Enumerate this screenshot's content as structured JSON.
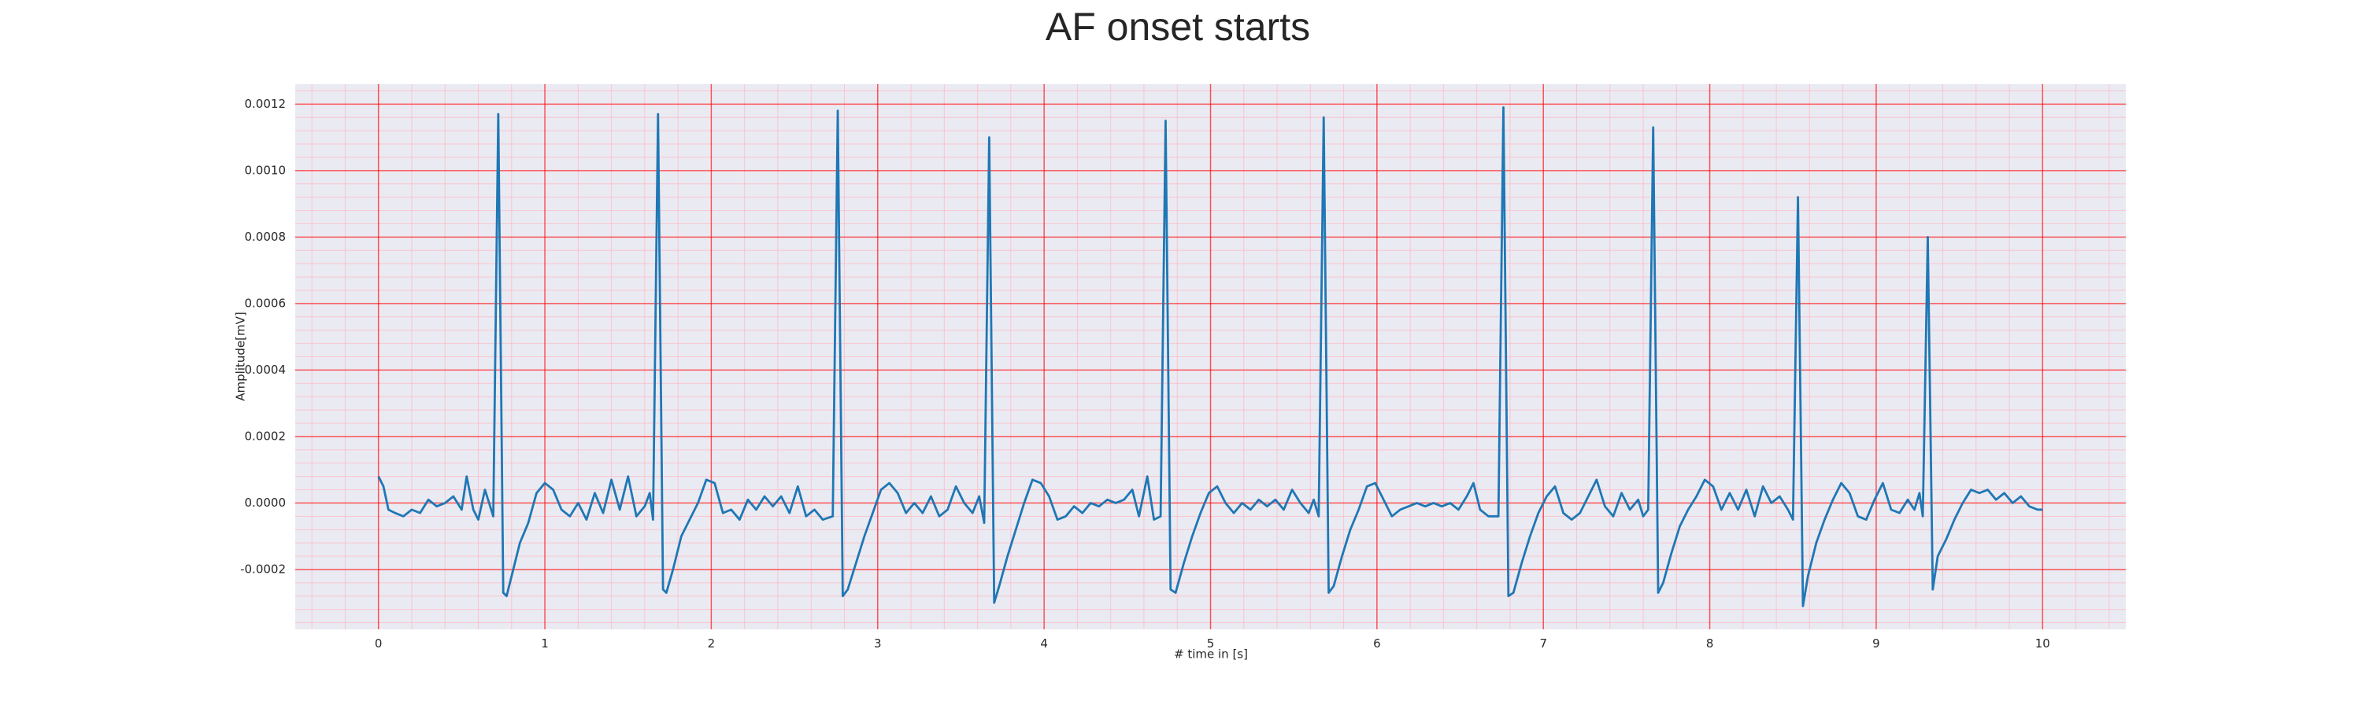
{
  "chart_data": {
    "type": "line",
    "title": "AF onset starts",
    "xlabel": "# time in [s]",
    "ylabel": "Amplitude[mV]",
    "x": [
      0,
      0.03,
      0.06,
      0.1,
      0.15,
      0.2,
      0.25,
      0.3,
      0.35,
      0.4,
      0.45,
      0.5,
      0.53,
      0.57,
      0.6,
      0.64,
      0.69,
      0.72,
      0.75,
      0.77,
      0.8,
      0.85,
      0.9,
      0.95,
      1.0,
      1.05,
      1.1,
      1.15,
      1.2,
      1.25,
      1.3,
      1.35,
      1.4,
      1.45,
      1.5,
      1.55,
      1.6,
      1.63,
      1.65,
      1.68,
      1.71,
      1.73,
      1.77,
      1.82,
      1.87,
      1.92,
      1.97,
      2.02,
      2.07,
      2.12,
      2.17,
      2.22,
      2.27,
      2.32,
      2.37,
      2.42,
      2.47,
      2.52,
      2.57,
      2.62,
      2.67,
      2.73,
      2.76,
      2.79,
      2.82,
      2.87,
      2.92,
      2.97,
      3.02,
      3.07,
      3.12,
      3.17,
      3.22,
      3.27,
      3.32,
      3.37,
      3.42,
      3.47,
      3.52,
      3.57,
      3.61,
      3.64,
      3.67,
      3.7,
      3.73,
      3.78,
      3.83,
      3.88,
      3.93,
      3.98,
      4.03,
      4.08,
      4.13,
      4.18,
      4.23,
      4.28,
      4.33,
      4.38,
      4.43,
      4.48,
      4.53,
      4.57,
      4.62,
      4.66,
      4.7,
      4.73,
      4.76,
      4.79,
      4.84,
      4.89,
      4.94,
      4.99,
      5.04,
      5.09,
      5.14,
      5.19,
      5.24,
      5.29,
      5.34,
      5.39,
      5.44,
      5.49,
      5.54,
      5.59,
      5.62,
      5.65,
      5.68,
      5.71,
      5.74,
      5.79,
      5.84,
      5.89,
      5.94,
      5.99,
      6.04,
      6.09,
      6.14,
      6.19,
      6.24,
      6.29,
      6.34,
      6.39,
      6.44,
      6.49,
      6.54,
      6.58,
      6.62,
      6.67,
      6.73,
      6.76,
      6.79,
      6.82,
      6.87,
      6.92,
      6.97,
      7.02,
      7.07,
      7.12,
      7.17,
      7.22,
      7.27,
      7.32,
      7.37,
      7.42,
      7.47,
      7.52,
      7.57,
      7.6,
      7.63,
      7.66,
      7.69,
      7.72,
      7.77,
      7.82,
      7.87,
      7.92,
      7.97,
      8.02,
      8.07,
      8.12,
      8.17,
      8.22,
      8.27,
      8.32,
      8.37,
      8.42,
      8.47,
      8.5,
      8.53,
      8.56,
      8.59,
      8.64,
      8.69,
      8.74,
      8.79,
      8.84,
      8.89,
      8.94,
      8.99,
      9.04,
      9.09,
      9.14,
      9.19,
      9.23,
      9.26,
      9.28,
      9.31,
      9.34,
      9.37,
      9.42,
      9.47,
      9.52,
      9.57,
      9.62,
      9.67,
      9.72,
      9.77,
      9.82,
      9.87,
      9.92,
      9.97,
      10.0
    ],
    "series": [
      {
        "color": "#1f77b4",
        "values": [
          8e-05,
          5e-05,
          -2e-05,
          -3e-05,
          -4e-05,
          -2e-05,
          -3e-05,
          1e-05,
          -1e-05,
          0.0,
          2e-05,
          -2e-05,
          8e-05,
          -2e-05,
          -5e-05,
          4e-05,
          -4e-05,
          0.00117,
          -0.00027,
          -0.00028,
          -0.00022,
          -0.00012,
          -6e-05,
          3e-05,
          6e-05,
          4e-05,
          -2e-05,
          -4e-05,
          0.0,
          -5e-05,
          3e-05,
          -3e-05,
          7e-05,
          -2e-05,
          8e-05,
          -4e-05,
          -1e-05,
          3e-05,
          -5e-05,
          0.00117,
          -0.00026,
          -0.00027,
          -0.0002,
          -0.0001,
          -5e-05,
          0.0,
          7e-05,
          6e-05,
          -3e-05,
          -2e-05,
          -5e-05,
          1e-05,
          -2e-05,
          2e-05,
          -1e-05,
          2e-05,
          -3e-05,
          5e-05,
          -4e-05,
          -2e-05,
          -5e-05,
          -4e-05,
          0.00118,
          -0.00028,
          -0.00026,
          -0.00018,
          -0.0001,
          -3e-05,
          4e-05,
          6e-05,
          3e-05,
          -3e-05,
          0.0,
          -3e-05,
          2e-05,
          -4e-05,
          -2e-05,
          5e-05,
          0.0,
          -3e-05,
          2e-05,
          -6e-05,
          0.0011,
          -0.0003,
          -0.00025,
          -0.00016,
          -8e-05,
          0.0,
          7e-05,
          6e-05,
          2e-05,
          -5e-05,
          -4e-05,
          -1e-05,
          -3e-05,
          0.0,
          -1e-05,
          1e-05,
          0.0,
          1e-05,
          4e-05,
          -4e-05,
          8e-05,
          -5e-05,
          -4e-05,
          0.00115,
          -0.00026,
          -0.00027,
          -0.00018,
          -0.0001,
          -3e-05,
          3e-05,
          5e-05,
          0.0,
          -3e-05,
          0.0,
          -2e-05,
          1e-05,
          -1e-05,
          1e-05,
          -2e-05,
          4e-05,
          0.0,
          -3e-05,
          1e-05,
          -4e-05,
          0.00116,
          -0.00027,
          -0.00025,
          -0.00016,
          -8e-05,
          -2e-05,
          5e-05,
          6e-05,
          1e-05,
          -4e-05,
          -2e-05,
          -1e-05,
          0.0,
          -1e-05,
          0.0,
          -1e-05,
          0.0,
          -2e-05,
          2e-05,
          6e-05,
          -2e-05,
          -4e-05,
          -4e-05,
          0.00119,
          -0.00028,
          -0.00027,
          -0.00018,
          -0.0001,
          -3e-05,
          2e-05,
          5e-05,
          -3e-05,
          -5e-05,
          -3e-05,
          2e-05,
          7e-05,
          -1e-05,
          -4e-05,
          3e-05,
          -2e-05,
          1e-05,
          -4e-05,
          -2e-05,
          0.00113,
          -0.00027,
          -0.00024,
          -0.00015,
          -7e-05,
          -2e-05,
          2e-05,
          7e-05,
          5e-05,
          -2e-05,
          3e-05,
          -2e-05,
          4e-05,
          -4e-05,
          5e-05,
          0.0,
          2e-05,
          -2e-05,
          -5e-05,
          0.00092,
          -0.00031,
          -0.00022,
          -0.00012,
          -5e-05,
          1e-05,
          6e-05,
          3e-05,
          -4e-05,
          -5e-05,
          1e-05,
          6e-05,
          -2e-05,
          -3e-05,
          1e-05,
          -2e-05,
          3e-05,
          -4e-05,
          0.0008,
          -0.00026,
          -0.00016,
          -0.00011,
          -5e-05,
          0.0,
          4e-05,
          3e-05,
          4e-05,
          1e-05,
          3e-05,
          0.0,
          2e-05,
          -1e-05,
          -2e-05,
          -2e-05
        ]
      }
    ],
    "xlim": [
      -0.5,
      10.5
    ],
    "xticks": [
      0,
      1,
      2,
      3,
      4,
      5,
      6,
      7,
      8,
      9,
      10
    ],
    "ylim": [
      -0.00038,
      0.00126
    ],
    "yticks": [
      {
        "value": -0.0002,
        "label": "-0.0002"
      },
      {
        "value": 0,
        "label": "0.0000"
      },
      {
        "value": 0.0002,
        "label": "0.0002"
      },
      {
        "value": 0.0004,
        "label": "0.0004"
      },
      {
        "value": 0.0006,
        "label": "0.0006"
      },
      {
        "value": 0.0008,
        "label": "0.0008"
      },
      {
        "value": 0.001,
        "label": "0.0010"
      },
      {
        "value": 0.0012,
        "label": "0.0012"
      }
    ],
    "grid": true,
    "grid_color": "#ff0000",
    "minor_grid": true,
    "minor_grid_color": "#ffb6c1"
  }
}
